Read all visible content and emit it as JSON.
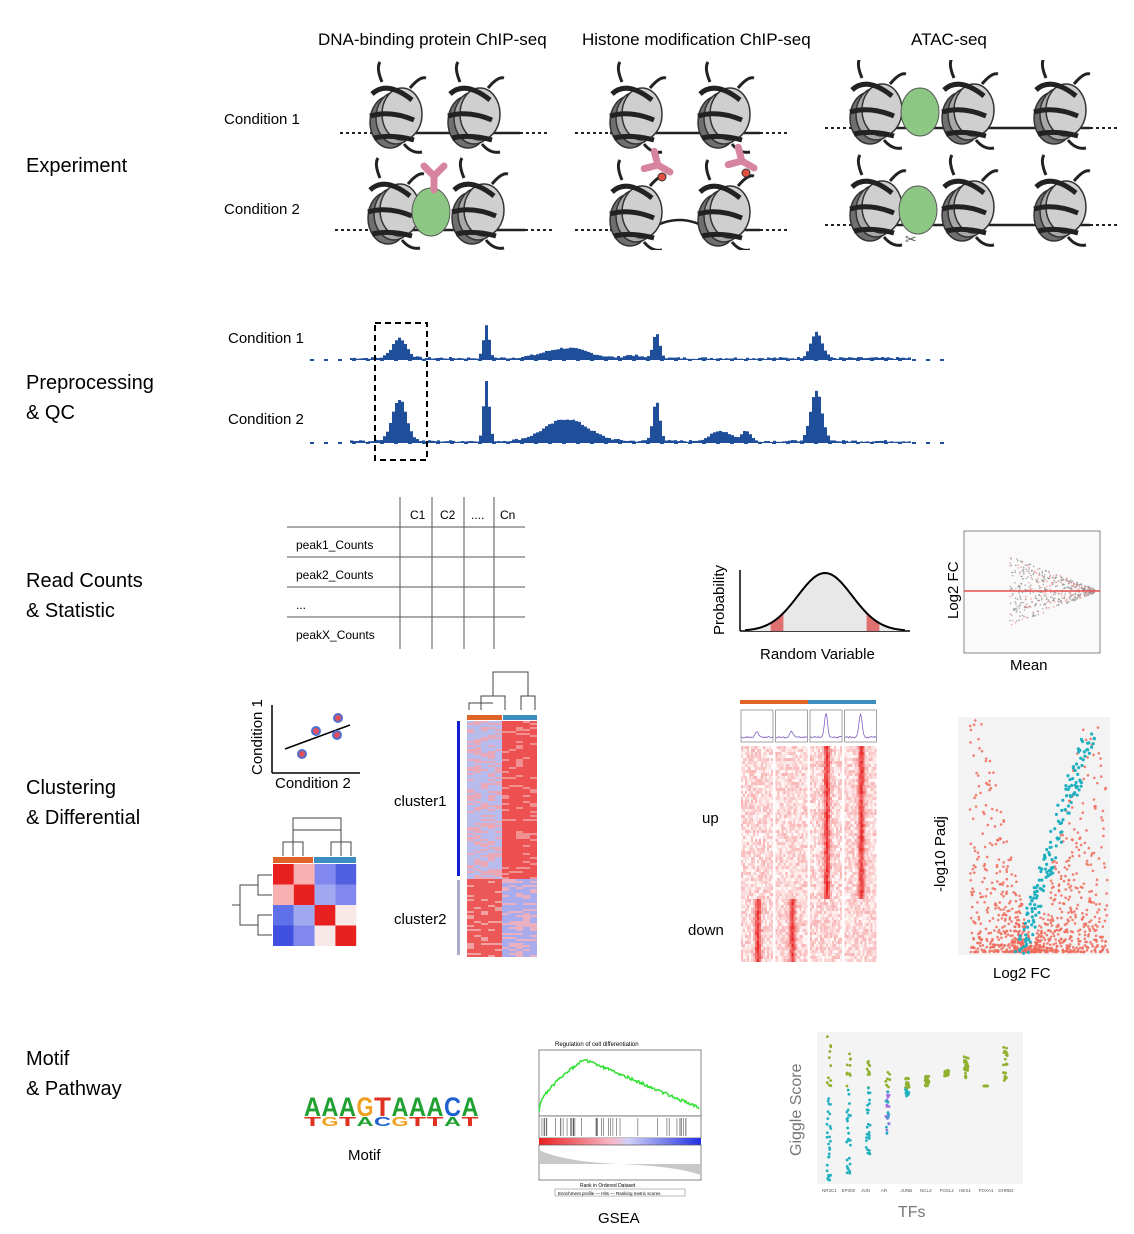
{
  "columns": {
    "dna": "DNA-binding protein ChIP-seq",
    "histone": "Histone modification ChIP-seq",
    "atac": "ATAC-seq"
  },
  "sections": {
    "experiment": "Experiment",
    "preprocessing": [
      "Preprocessing",
      "& QC"
    ],
    "readcounts": [
      "Read Counts",
      "& Statistic"
    ],
    "clustering": [
      "Clustering",
      "& Differential"
    ],
    "motif": [
      "Motif",
      "& Pathway"
    ]
  },
  "conditions": {
    "c1": "Condition 1",
    "c2": "Condition 2"
  },
  "count_table": {
    "columns": [
      "C1",
      "C2",
      "....",
      "Cn"
    ],
    "rows": [
      "peak1_Counts",
      "peak2_Counts",
      "...",
      "peakX_Counts"
    ]
  },
  "distribution": {
    "ylabel": "Probability",
    "xlabel": "Random Variable"
  },
  "ma_plot": {
    "ylabel": "Log2 FC",
    "xlabel": "Mean"
  },
  "scatter": {
    "ylabel": "Condition 1",
    "xlabel": "Condition 2"
  },
  "heatmap": {
    "cluster1": "cluster1",
    "cluster2": "cluster2"
  },
  "profile": {
    "up": "up",
    "down": "down"
  },
  "volcano": {
    "ylabel": "-log10 Padj",
    "xlabel": "Log2 FC"
  },
  "motif": {
    "sequence": "AAAGTAAACA",
    "label": "Motif"
  },
  "gsea": {
    "label": "GSEA",
    "title": "Regulation of cell differentiation",
    "xlabel": "Rank in Ordered Dataset",
    "legend": "Enrichment profile — Hits — Ranking metric scores"
  },
  "giggle": {
    "ylabel": "Giggle Score",
    "xlabel": "TFs",
    "tfs": [
      "NR3C1",
      "EP300",
      "JUN",
      "AR",
      "JUNB",
      "NCL3",
      "FOSL2",
      "HES1",
      "FOXA1",
      "DHRB2"
    ]
  },
  "colors": {
    "track": "#1f4e9a",
    "nucleosome": "#9a9a9a",
    "protein": "#8cc784",
    "antibody": "#d7859f",
    "heat_red": "#e8202a",
    "heat_blue": "#2030e0",
    "orange": "#e06428",
    "steel": "#3d8dc0",
    "volcano_red": "#f06a5a",
    "volcano_cyan": "#20b0c0"
  }
}
